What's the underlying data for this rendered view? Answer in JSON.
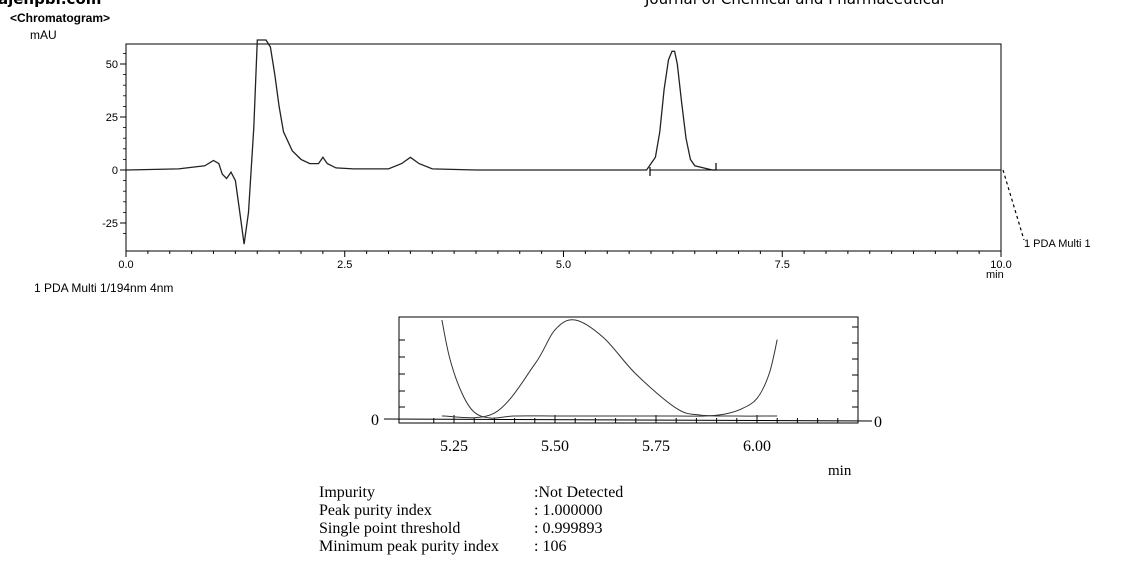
{
  "header": {
    "left_text": "ajehpbr.com",
    "right_text": "Journal of Chemical and Pharmaceutical"
  },
  "chart_data": [
    {
      "type": "line",
      "title": "<Chromatogram>",
      "ylabel": "mAU",
      "xlabel": "min",
      "xlim": [
        0.0,
        10.0
      ],
      "ylim": [
        -35,
        60
      ],
      "xticks": [
        "0.0",
        "2.5",
        "5.0",
        "7.5",
        "10.0"
      ],
      "yticks": [
        "50",
        "25",
        "0",
        "-25"
      ],
      "channel": "1 PDA Multi 1/194nm 4nm",
      "series": [
        {
          "name": "1 PDA Multi 1",
          "x": [
            0.0,
            0.6,
            0.9,
            1.0,
            1.06,
            1.1,
            1.15,
            1.2,
            1.25,
            1.3,
            1.35,
            1.4,
            1.46,
            1.5,
            1.55,
            1.6,
            1.65,
            1.7,
            1.75,
            1.8,
            1.9,
            2.0,
            2.1,
            2.2,
            2.25,
            2.3,
            2.4,
            2.6,
            3.0,
            3.15,
            3.25,
            3.35,
            3.5,
            4.0,
            5.0,
            5.95,
            6.05,
            6.1,
            6.15,
            6.2,
            6.24,
            6.27,
            6.3,
            6.35,
            6.4,
            6.45,
            6.5,
            6.6,
            6.7,
            7.0,
            8.0,
            9.0,
            10.0
          ],
          "y": [
            0,
            0.5,
            2,
            4.5,
            3,
            -2,
            -4,
            -1,
            -5,
            -20,
            -35,
            -20,
            20,
            70,
            65,
            62,
            58,
            45,
            30,
            18,
            9,
            5,
            3,
            3,
            6,
            3,
            1,
            0.5,
            0.5,
            3,
            6,
            3,
            0.5,
            0,
            0,
            0,
            6,
            18,
            38,
            52,
            56,
            56,
            50,
            32,
            15,
            5,
            2,
            1,
            0,
            0,
            0,
            0,
            0
          ]
        }
      ]
    },
    {
      "type": "line",
      "title": "",
      "xlabel": "min",
      "xlim": [
        5.2,
        6.2
      ],
      "xticks": [
        "5.25",
        "5.50",
        "5.75",
        "6.00"
      ],
      "yticks_left": [
        "0"
      ],
      "yticks_right": [
        "0"
      ],
      "series": [
        {
          "name": "",
          "x": [
            5.22,
            5.35,
            5.45,
            5.5,
            5.55,
            5.62,
            5.7,
            5.8,
            5.86,
            5.95,
            6.05
          ],
          "y": [
            0.02,
            0.05,
            0.55,
            0.9,
            1.0,
            0.82,
            0.45,
            0.1,
            0.03,
            0.02,
            0.02
          ]
        },
        {
          "name": "",
          "x": [
            5.22,
            5.24,
            5.27,
            5.3,
            5.34,
            5.4,
            5.5,
            5.6,
            5.7,
            5.8,
            5.87,
            5.92,
            5.96,
            6.0,
            6.03,
            6.05
          ],
          "y": [
            1.0,
            0.6,
            0.25,
            0.06,
            0.0,
            0.02,
            0.02,
            0.02,
            0.02,
            0.02,
            0.02,
            0.04,
            0.09,
            0.2,
            0.45,
            0.8
          ]
        }
      ]
    }
  ],
  "purity_table": [
    {
      "label": "Impurity",
      "value": ":Not Detected"
    },
    {
      "label": "Peak purity index",
      "value": ": 1.000000"
    },
    {
      "label": "Single point threshold",
      "value": ": 0.999893"
    },
    {
      "label": "Minimum peak purity index",
      "value": ": 106"
    }
  ]
}
